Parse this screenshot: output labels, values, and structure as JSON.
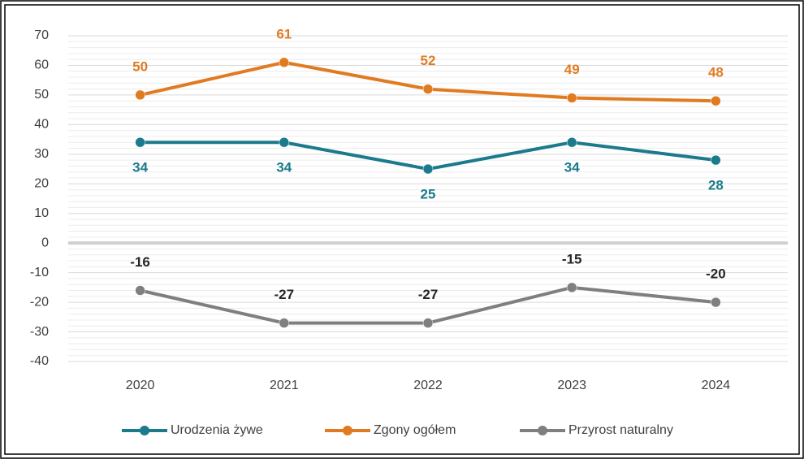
{
  "chart_data": {
    "type": "line",
    "categories": [
      "2020",
      "2021",
      "2022",
      "2023",
      "2024"
    ],
    "series": [
      {
        "name": "Urodzenia żywe",
        "color": "#1b7a8c",
        "label_position": "below",
        "values": [
          34,
          34,
          25,
          34,
          28
        ]
      },
      {
        "name": "Zgony ogółem",
        "color": "#e07b22",
        "label_position": "above",
        "values": [
          50,
          61,
          52,
          49,
          48
        ]
      },
      {
        "name": "Przyrost naturalny",
        "color": "#7f7f7f",
        "label_position": "above",
        "values": [
          -16,
          -27,
          -27,
          -15,
          -20
        ]
      }
    ],
    "ylim": [
      -40,
      70
    ],
    "yticks": [
      -40,
      -30,
      -20,
      -10,
      0,
      10,
      20,
      30,
      40,
      50,
      60,
      70
    ],
    "grid": true,
    "legend": "bottom"
  }
}
